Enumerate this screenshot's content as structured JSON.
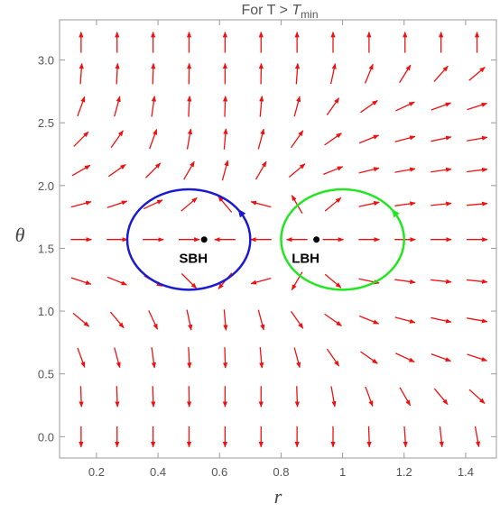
{
  "chart_data": {
    "type": "vector_field",
    "title": "For  T > ",
    "title_var": "T",
    "title_subscript": "min",
    "xlabel": "r",
    "ylabel": "θ",
    "xlim": [
      0.08,
      1.5
    ],
    "ylim": [
      -0.17,
      3.32
    ],
    "xticks": [
      0.2,
      0.4,
      0.6,
      0.8,
      1.0,
      1.2,
      1.4
    ],
    "yticks": [
      {
        "value": 0,
        "label": "0.0"
      },
      0.5,
      {
        "value": 1,
        "label": "1.0"
      },
      1.5,
      {
        "value": 2,
        "label": "2.0"
      },
      2.5,
      {
        "value": 3,
        "label": "3.0"
      }
    ],
    "field": {
      "color": "#ee1111",
      "r": [
        0.15,
        0.267,
        0.384,
        0.501,
        0.618,
        0.735,
        0.852,
        0.969,
        1.086,
        1.203,
        1.32,
        1.437
      ],
      "theta": [
        0.0,
        0.32,
        0.63,
        0.93,
        1.24,
        1.57,
        1.85,
        2.12,
        2.37,
        2.63,
        2.89,
        3.14
      ],
      "angles": [
        [
          -90,
          -90,
          -90,
          -90,
          -90,
          -90,
          -90,
          -90,
          -88,
          -86,
          -84,
          -80
        ],
        [
          -88,
          -88,
          -88,
          -89,
          -90,
          -90,
          -88,
          -80,
          -70,
          -60,
          -50,
          -42
        ],
        [
          -70,
          -75,
          -82,
          -87,
          -88,
          -85,
          -75,
          -55,
          -35,
          -25,
          -20,
          -18
        ],
        [
          -40,
          -50,
          -65,
          -78,
          -85,
          -75,
          -55,
          -35,
          -22,
          -15,
          -12,
          -10
        ],
        [
          -18,
          -22,
          -30,
          -45,
          -130,
          -165,
          -120,
          -40,
          -12,
          -8,
          -6,
          -6
        ],
        [
          0,
          0,
          0,
          0,
          180,
          180,
          180,
          0,
          0,
          0,
          0,
          0
        ],
        [
          15,
          18,
          25,
          40,
          130,
          165,
          120,
          40,
          12,
          8,
          6,
          5
        ],
        [
          30,
          35,
          45,
          60,
          75,
          60,
          40,
          22,
          14,
          10,
          8,
          7
        ],
        [
          45,
          55,
          70,
          80,
          85,
          75,
          55,
          35,
          22,
          15,
          12,
          10
        ],
        [
          70,
          75,
          82,
          87,
          88,
          85,
          75,
          55,
          35,
          25,
          20,
          18
        ],
        [
          86,
          87,
          88,
          89,
          90,
          89,
          86,
          78,
          68,
          58,
          48,
          40
        ],
        [
          90,
          90,
          90,
          90,
          90,
          90,
          90,
          90,
          90,
          90,
          90,
          90
        ]
      ]
    },
    "circles": [
      {
        "color": "#1a1ad0",
        "center": [
          0.5,
          1.57
        ],
        "radii": [
          0.2,
          0.4
        ]
      },
      {
        "color": "#22e622",
        "center": [
          1.0,
          1.57
        ],
        "radii": [
          0.2,
          0.4
        ]
      }
    ],
    "points": [
      {
        "label": "SBH",
        "x": 0.55,
        "y": 1.57
      },
      {
        "label": "LBH",
        "x": 0.915,
        "y": 1.57
      }
    ]
  }
}
